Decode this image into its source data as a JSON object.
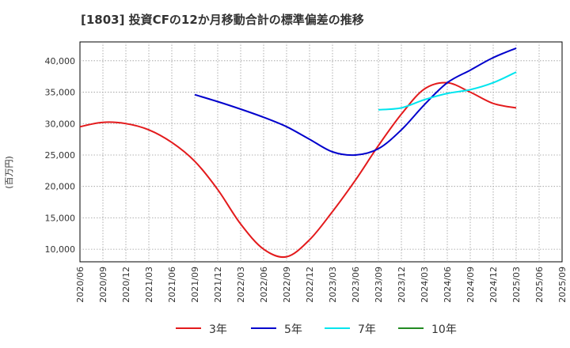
{
  "chart_data": {
    "type": "line",
    "title": "[1803]  投資CFの12か月移動合計の標準偏差の推移",
    "ylabel": "(百万円)",
    "xlabel": "",
    "ylim": [
      8000,
      43000
    ],
    "yticks": [
      10000,
      15000,
      20000,
      25000,
      30000,
      35000,
      40000
    ],
    "ytick_labels": [
      "10,000",
      "15,000",
      "20,000",
      "25,000",
      "30,000",
      "35,000",
      "40,000"
    ],
    "x": [
      "2020/06",
      "2020/09",
      "2020/12",
      "2021/03",
      "2021/06",
      "2021/09",
      "2021/12",
      "2022/03",
      "2022/06",
      "2022/09",
      "2022/12",
      "2023/03",
      "2023/06",
      "2023/09",
      "2023/12",
      "2024/03",
      "2024/06",
      "2024/09",
      "2024/12",
      "2025/03",
      "2025/06",
      "2025/09"
    ],
    "grid": true,
    "legend_position": "bottom",
    "series": [
      {
        "name": "3年",
        "color": "#e31a1c",
        "values": [
          29500,
          30200,
          30000,
          29000,
          27000,
          24000,
          19500,
          14000,
          10000,
          8800,
          11500,
          16000,
          21000,
          26500,
          31500,
          35500,
          36500,
          35000,
          33200,
          32500,
          null,
          null
        ]
      },
      {
        "name": "5年",
        "color": "#0000cc",
        "values": [
          null,
          null,
          null,
          null,
          null,
          34600,
          33500,
          32300,
          31000,
          29500,
          27500,
          25500,
          25000,
          26000,
          29000,
          33000,
          36500,
          38500,
          40500,
          42000,
          null,
          null
        ]
      },
      {
        "name": "7年",
        "color": "#00e5ee",
        "values": [
          null,
          null,
          null,
          null,
          null,
          null,
          null,
          null,
          null,
          null,
          null,
          null,
          null,
          32200,
          32500,
          33800,
          34800,
          35400,
          36500,
          38200,
          null,
          null
        ]
      },
      {
        "name": "10年",
        "color": "#228b22",
        "values": [
          null,
          null,
          null,
          null,
          null,
          null,
          null,
          null,
          null,
          null,
          null,
          null,
          null,
          null,
          null,
          null,
          null,
          null,
          null,
          null,
          null,
          null
        ]
      }
    ]
  }
}
